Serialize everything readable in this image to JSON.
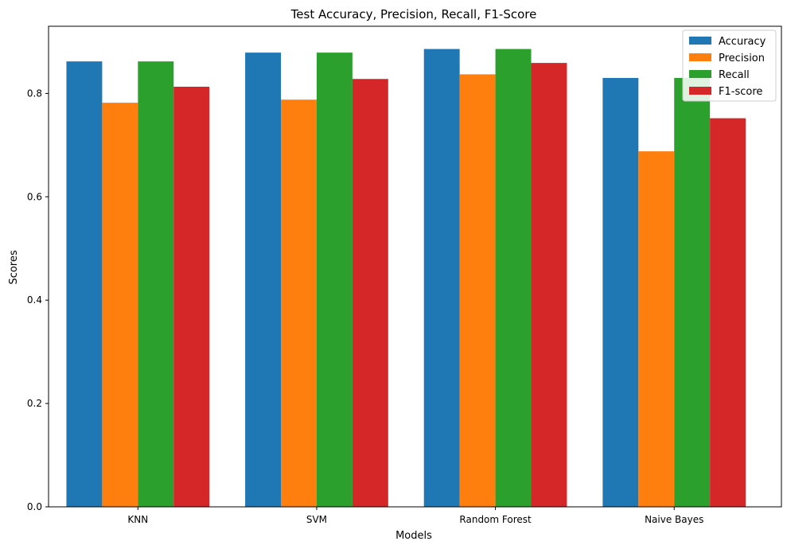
{
  "chart_data": {
    "type": "bar",
    "title": "Test Accuracy, Precision, Recall, F1-Score",
    "xlabel": "Models",
    "ylabel": "Scores",
    "categories": [
      "KNN",
      "SVM",
      "Random Forest",
      "Naive Bayes"
    ],
    "series": [
      {
        "name": "Accuracy",
        "color": "#1f77b4",
        "values": [
          0.862,
          0.879,
          0.886,
          0.83
        ]
      },
      {
        "name": "Precision",
        "color": "#ff7f0e",
        "values": [
          0.782,
          0.788,
          0.837,
          0.688
        ]
      },
      {
        "name": "Recall",
        "color": "#2ca02c",
        "values": [
          0.862,
          0.879,
          0.886,
          0.83
        ]
      },
      {
        "name": "F1-score",
        "color": "#d62728",
        "values": [
          0.813,
          0.828,
          0.859,
          0.752
        ]
      }
    ],
    "ylim": [
      0,
      0.93
    ],
    "yticks": [
      "0.0",
      "0.2",
      "0.4",
      "0.6",
      "0.8"
    ],
    "grid": false,
    "legend_position": "top-right"
  }
}
